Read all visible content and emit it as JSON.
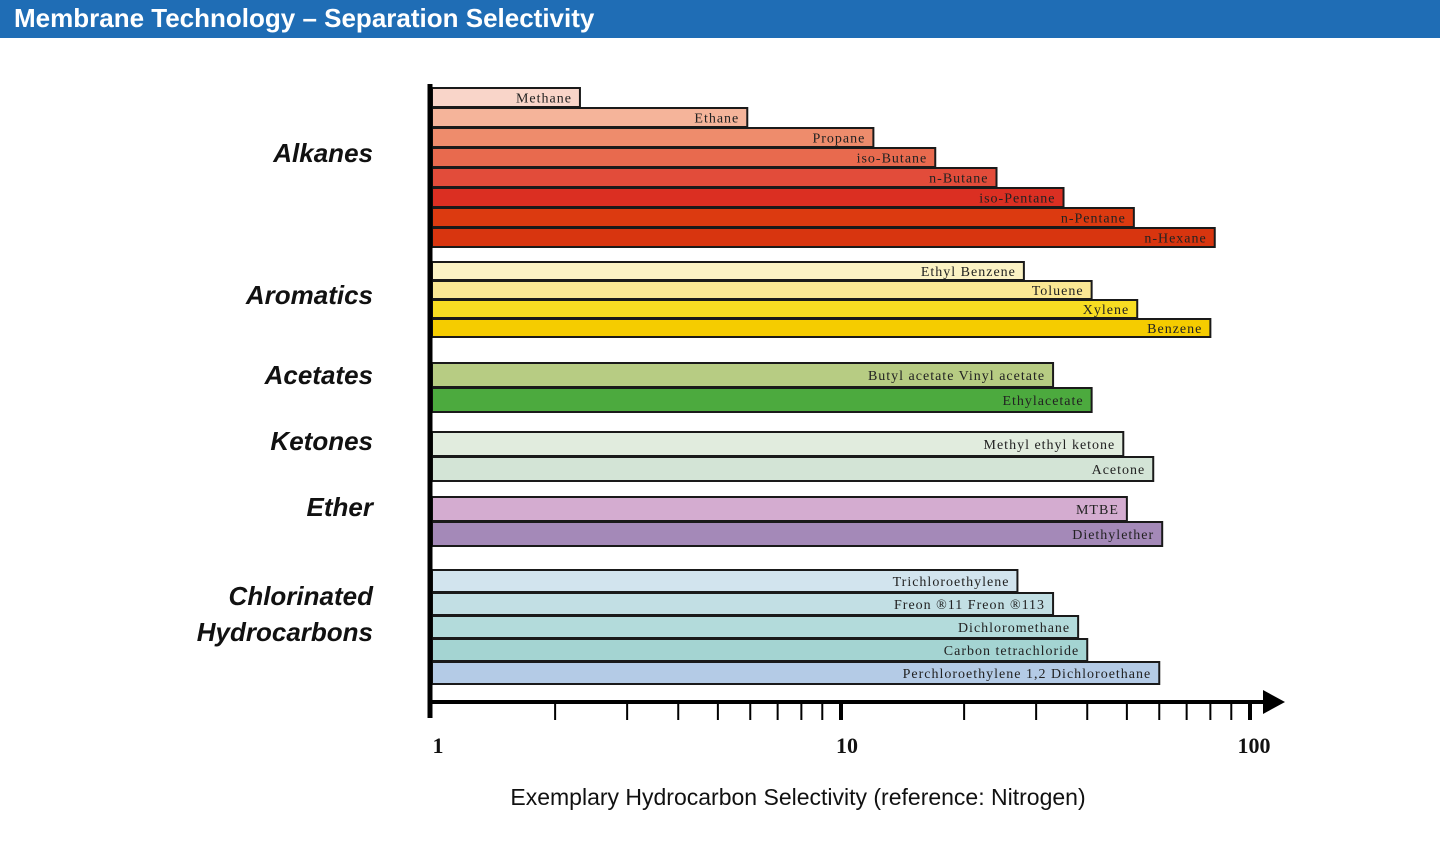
{
  "header": {
    "title": "Membrane Technology – Separation Selectivity"
  },
  "chart_data": {
    "type": "bar",
    "orientation": "horizontal",
    "x_scale": "log",
    "xlim": [
      1,
      100
    ],
    "xlabel": "Exemplary Hydrocarbon Selectivity (reference: Nitrogen)",
    "x_tick_labels": [
      {
        "value": 1,
        "label": "1"
      },
      {
        "value": 10,
        "label": "10"
      },
      {
        "value": 100,
        "label": "100"
      }
    ],
    "groups": [
      {
        "name": "Alkanes",
        "label_lines": [
          "Alkanes"
        ],
        "bars": [
          {
            "label": "Methane",
            "value": 2.3,
            "color": "#f9d5c9"
          },
          {
            "label": "Ethane",
            "value": 5.9,
            "color": "#f5b49a"
          },
          {
            "label": "Propane",
            "value": 12,
            "color": "#ee8c6c"
          },
          {
            "label": "iso-Butane",
            "value": 17,
            "color": "#e86a4e"
          },
          {
            "label": "n-Butane",
            "value": 24,
            "color": "#e24c3a"
          },
          {
            "label": "iso-Pentane",
            "value": 35,
            "color": "#db2f22"
          },
          {
            "label": "n-Pentane",
            "value": 52,
            "color": "#dc3a10"
          },
          {
            "label": "n-Hexane",
            "value": 82,
            "color": "#d8350f"
          }
        ]
      },
      {
        "name": "Aromatics",
        "label_lines": [
          "Aromatics"
        ],
        "bars": [
          {
            "label": "Ethyl Benzene",
            "value": 28,
            "color": "#fbf2c4"
          },
          {
            "label": "Toluene",
            "value": 41,
            "color": "#fbe894"
          },
          {
            "label": "Xylene",
            "value": 53,
            "color": "#f8dd22"
          },
          {
            "label": "Benzene",
            "value": 80,
            "color": "#f5cc00"
          }
        ]
      },
      {
        "name": "Acetates",
        "label_lines": [
          "Acetates"
        ],
        "bars": [
          {
            "label": "Butyl acetate    Vinyl acetate",
            "value": 33,
            "color": "#b7cc83"
          },
          {
            "label": "Ethylacetate",
            "value": 41,
            "color": "#4caa3e"
          }
        ]
      },
      {
        "name": "Ketones",
        "label_lines": [
          "Ketones"
        ],
        "bars": [
          {
            "label": "Methyl ethyl ketone",
            "value": 49,
            "color": "#e1ecde"
          },
          {
            "label": "Acetone",
            "value": 58,
            "color": "#d3e4d6"
          }
        ]
      },
      {
        "name": "Ether",
        "label_lines": [
          "Ether"
        ],
        "bars": [
          {
            "label": "MTBE",
            "value": 50,
            "color": "#d4acd0"
          },
          {
            "label": "Diethylether",
            "value": 61,
            "color": "#a489b8"
          }
        ]
      },
      {
        "name": "Chlorinated Hydrocarbons",
        "label_lines": [
          "Chlorinated",
          "Hydrocarbons"
        ],
        "bars": [
          {
            "label": "Trichloroethylene",
            "value": 27,
            "color": "#d2e4ee"
          },
          {
            "label": "Freon ®11    Freon ®113",
            "value": 33,
            "color": "#c2dfe4"
          },
          {
            "label": "Dichloromethane",
            "value": 38,
            "color": "#b3dbdb"
          },
          {
            "label": "Carbon tetrachloride",
            "value": 40,
            "color": "#a4d4d2"
          },
          {
            "label": "Perchloroethylene   1,2  Dichloroethane",
            "value": 60,
            "color": "#b4cbe6"
          }
        ]
      }
    ]
  }
}
